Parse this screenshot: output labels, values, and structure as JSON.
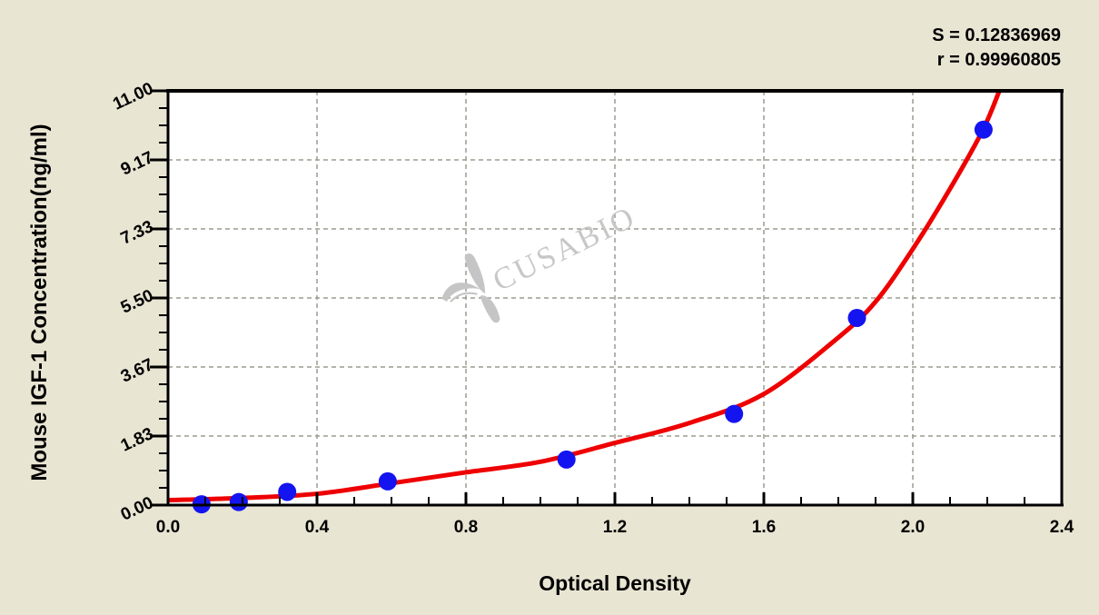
{
  "chart_data": {
    "type": "scatter",
    "subtype": "standard-curve (scatter points with fitted line)",
    "xlabel": "Optical Density",
    "ylabel": "Mouse IGF-1 Concentration(ng/ml)",
    "stats": {
      "s_label": "S = 0.12836969",
      "r_label": "r = 0.99960805"
    },
    "watermark": "CUSABIO",
    "xlim": [
      0.0,
      2.4
    ],
    "ylim": [
      0.0,
      11.0
    ],
    "x_tick_values": [
      0.0,
      0.4,
      0.8,
      1.2,
      1.6,
      2.0,
      2.4
    ],
    "x_tick_labels": [
      "0.0",
      "0.4",
      "0.8",
      "1.2",
      "1.6",
      "2.0",
      "2.4"
    ],
    "x_minor_step": 0.1,
    "y_tick_values": [
      0.0,
      1.8333,
      3.6667,
      5.5,
      7.3333,
      9.1667,
      11.0
    ],
    "y_tick_labels": [
      "0.00",
      "1.83",
      "3.67",
      "5.50",
      "7.33",
      "9.17",
      "11.00"
    ],
    "y_minor_per_major": 4,
    "grid": "dashed gridlines at major ticks",
    "legend": "none",
    "points": [
      [
        0.09,
        0.02
      ],
      [
        0.19,
        0.08
      ],
      [
        0.32,
        0.35
      ],
      [
        0.59,
        0.63
      ],
      [
        1.07,
        1.21
      ],
      [
        1.52,
        2.42
      ],
      [
        1.85,
        4.97
      ],
      [
        2.19,
        9.97
      ]
    ],
    "curve": [
      [
        0.0,
        0.13
      ],
      [
        0.2,
        0.19
      ],
      [
        0.4,
        0.3
      ],
      [
        0.6,
        0.58
      ],
      [
        0.8,
        0.87
      ],
      [
        1.0,
        1.15
      ],
      [
        1.2,
        1.65
      ],
      [
        1.4,
        2.18
      ],
      [
        1.6,
        2.95
      ],
      [
        1.8,
        4.45
      ],
      [
        1.9,
        5.4
      ],
      [
        2.0,
        6.8
      ],
      [
        2.1,
        8.4
      ],
      [
        2.19,
        10.0
      ],
      [
        2.24,
        11.2
      ]
    ],
    "colors": {
      "background": "#e9e5d3",
      "plot_background": "#ffffff",
      "curve": "#ee0000",
      "points": "#1414f0",
      "grid": "#9b9b8f",
      "axis": "#000000",
      "watermark": "#c7c7c7"
    }
  }
}
